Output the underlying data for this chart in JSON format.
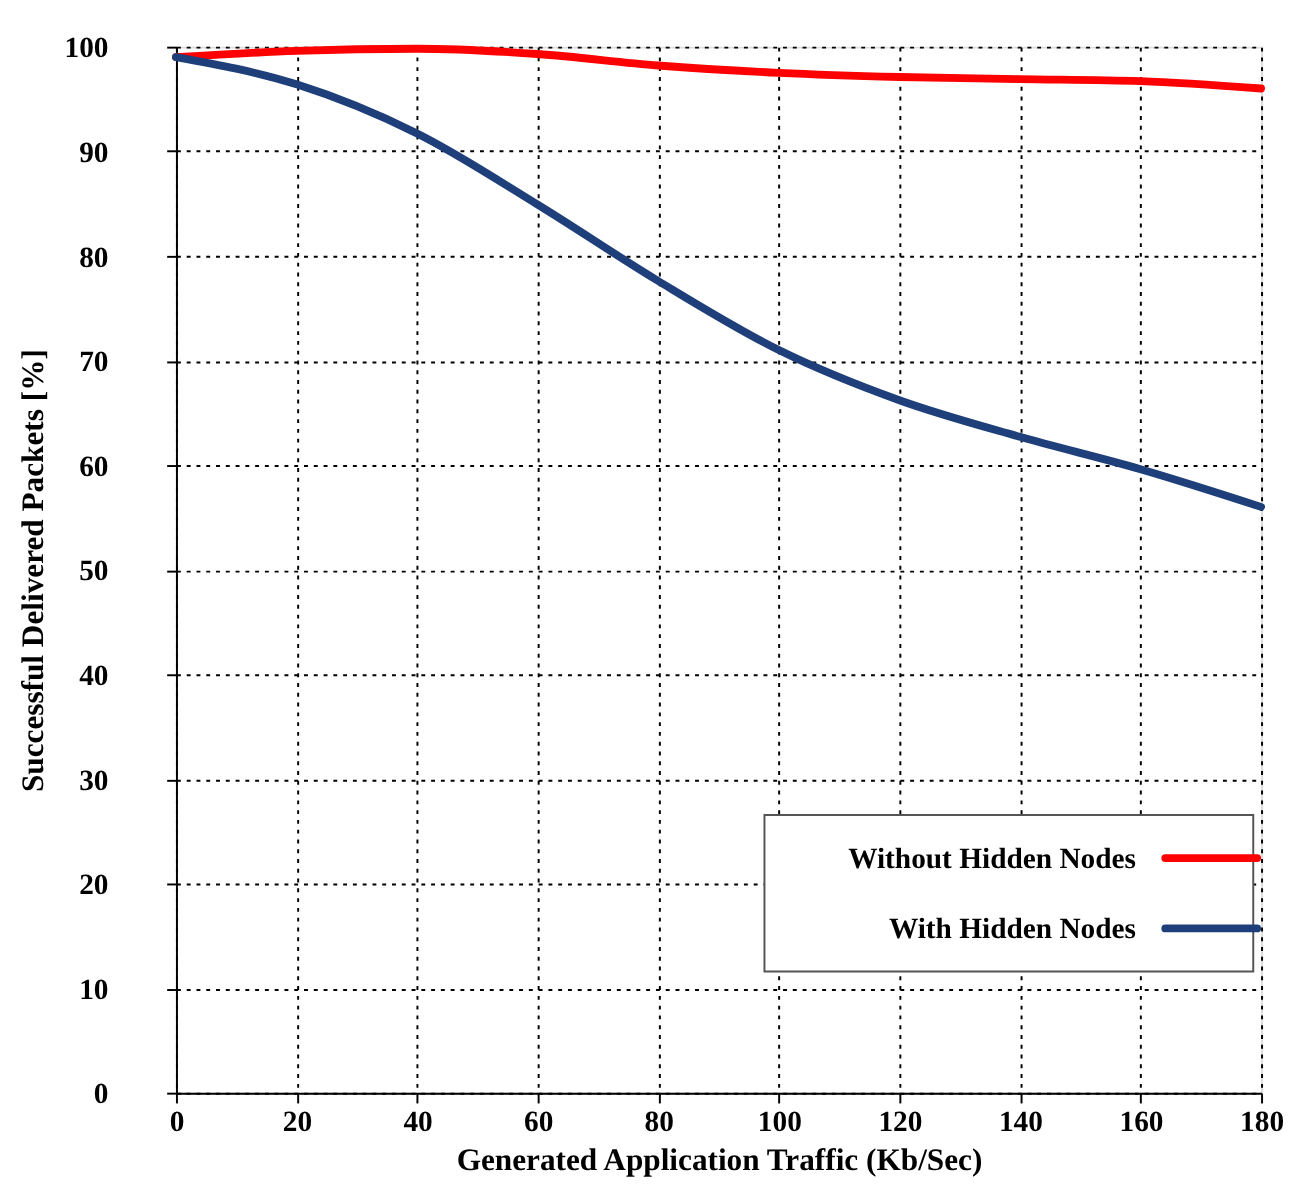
{
  "chart_data": {
    "type": "line",
    "xlabel": "Generated Application Traffic (Kb/Sec)",
    "ylabel": "Successful Delivered Packets [%]",
    "x": [
      0,
      20,
      40,
      60,
      80,
      100,
      120,
      140,
      160,
      180
    ],
    "series": [
      {
        "name": "Without Hidden Nodes",
        "color": "#ff0000",
        "values": [
          99,
          99.6,
          99.8,
          99.3,
          98.2,
          97.5,
          97.1,
          96.9,
          96.7,
          96
        ]
      },
      {
        "name": "With Hidden Nodes",
        "color": "#1f3f7a",
        "values": [
          99,
          96.4,
          91.7,
          84.9,
          77.6,
          71,
          66.2,
          62.7,
          59.6,
          56
        ]
      }
    ],
    "xlim": [
      0,
      180
    ],
    "xticks": [
      0,
      20,
      40,
      60,
      80,
      100,
      120,
      140,
      160,
      180
    ],
    "ylim": [
      0,
      100
    ],
    "yticks": [
      0,
      10,
      20,
      30,
      40,
      50,
      60,
      70,
      80,
      90,
      100
    ],
    "grid": true,
    "legend": "bottom right",
    "marker": "none",
    "line_style": "solid"
  }
}
